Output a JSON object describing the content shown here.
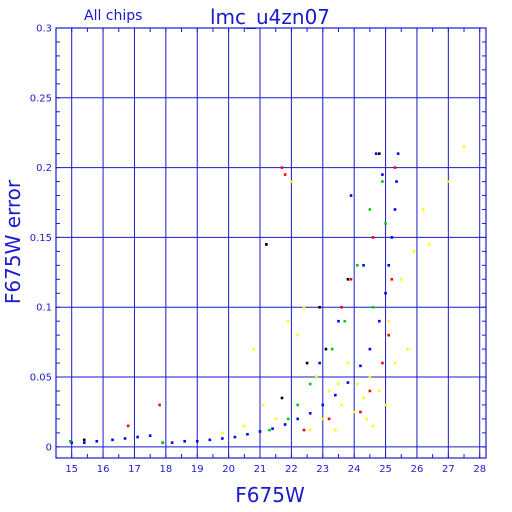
{
  "chart_data": {
    "type": "scatter",
    "title": "lmc_u4zn07",
    "subtitle": "All chips",
    "xlabel": "F675W",
    "ylabel": "F675W error",
    "xlim": [
      14.5,
      28.2
    ],
    "ylim": [
      -0.008,
      0.3
    ],
    "x_ticks": [
      "15",
      "16",
      "17",
      "18",
      "19",
      "20",
      "21",
      "22",
      "23",
      "24",
      "25",
      "26",
      "27",
      "28"
    ],
    "y_ticks": [
      "0",
      "0.05",
      "0.1",
      "0.15",
      "0.2",
      "0.25",
      "0.3"
    ],
    "grid": true,
    "series": [
      {
        "color": "#0000ff",
        "points": [
          [
            15,
            0.003
          ],
          [
            15.4,
            0.003
          ],
          [
            15.8,
            0.004
          ],
          [
            16.3,
            0.005
          ],
          [
            16.7,
            0.006
          ],
          [
            17.1,
            0.007
          ],
          [
            17.5,
            0.008
          ],
          [
            17.9,
            0.003
          ],
          [
            18.2,
            0.003
          ],
          [
            18.6,
            0.004
          ],
          [
            19.0,
            0.004
          ],
          [
            19.4,
            0.005
          ],
          [
            19.8,
            0.006
          ],
          [
            20.2,
            0.007
          ],
          [
            20.6,
            0.009
          ],
          [
            21.0,
            0.011
          ],
          [
            21.4,
            0.013
          ],
          [
            21.8,
            0.016
          ],
          [
            22.2,
            0.02
          ],
          [
            22.6,
            0.024
          ],
          [
            23.0,
            0.03
          ],
          [
            23.4,
            0.037
          ],
          [
            23.8,
            0.046
          ],
          [
            24.2,
            0.058
          ],
          [
            24.5,
            0.07
          ],
          [
            24.8,
            0.09
          ],
          [
            25.0,
            0.11
          ],
          [
            25.1,
            0.13
          ],
          [
            25.2,
            0.15
          ],
          [
            25.3,
            0.17
          ],
          [
            25.35,
            0.19
          ],
          [
            25.4,
            0.21
          ],
          [
            21.2,
            0.145
          ],
          [
            24.7,
            0.21
          ],
          [
            23.9,
            0.18
          ],
          [
            24.3,
            0.13
          ],
          [
            23.5,
            0.09
          ],
          [
            22.9,
            0.06
          ],
          [
            24.9,
            0.195
          ]
        ]
      },
      {
        "color": "#ff0000",
        "points": [
          [
            17.8,
            0.03
          ],
          [
            21.7,
            0.2
          ],
          [
            21.8,
            0.195
          ],
          [
            24.5,
            0.04
          ],
          [
            24.9,
            0.06
          ],
          [
            25.1,
            0.08
          ],
          [
            25.2,
            0.12
          ],
          [
            23.6,
            0.1
          ],
          [
            23.2,
            0.02
          ],
          [
            22.4,
            0.012
          ],
          [
            24.6,
            0.15
          ],
          [
            25.3,
            0.2
          ],
          [
            16.8,
            0.015
          ],
          [
            23.9,
            0.12
          ],
          [
            24.2,
            0.025
          ]
        ]
      },
      {
        "color": "#00cc00",
        "points": [
          [
            17.9,
            0.003
          ],
          [
            22.8,
            0.05
          ],
          [
            23.7,
            0.09
          ],
          [
            24.1,
            0.13
          ],
          [
            24.5,
            0.17
          ],
          [
            24.9,
            0.19
          ],
          [
            22.2,
            0.03
          ],
          [
            23.3,
            0.07
          ],
          [
            21.9,
            0.02
          ],
          [
            24.6,
            0.1
          ],
          [
            25.0,
            0.16
          ],
          [
            21.3,
            0.012
          ],
          [
            22.6,
            0.045
          ],
          [
            14.95,
            0.004
          ]
        ]
      },
      {
        "color": "#000000",
        "points": [
          [
            15.4,
            0.005
          ],
          [
            21.2,
            0.145
          ],
          [
            22.5,
            0.06
          ],
          [
            23.8,
            0.12
          ],
          [
            24.8,
            0.21
          ],
          [
            23.1,
            0.07
          ],
          [
            21.7,
            0.035
          ],
          [
            22.9,
            0.1
          ]
        ]
      },
      {
        "color": "#ffff00",
        "points": [
          [
            19.8,
            0.01
          ],
          [
            20.5,
            0.015
          ],
          [
            21.5,
            0.02
          ],
          [
            22.0,
            0.19
          ],
          [
            22.2,
            0.08
          ],
          [
            22.4,
            0.1
          ],
          [
            22.8,
            0.05
          ],
          [
            23.0,
            0.02
          ],
          [
            23.2,
            0.04
          ],
          [
            23.4,
            0.012
          ],
          [
            23.6,
            0.03
          ],
          [
            23.8,
            0.06
          ],
          [
            24.0,
            0.025
          ],
          [
            24.1,
            0.045
          ],
          [
            24.3,
            0.035
          ],
          [
            24.5,
            0.05
          ],
          [
            24.6,
            0.015
          ],
          [
            24.8,
            0.04
          ],
          [
            25.0,
            0.03
          ],
          [
            25.1,
            0.09
          ],
          [
            25.3,
            0.06
          ],
          [
            25.5,
            0.12
          ],
          [
            25.7,
            0.07
          ],
          [
            25.9,
            0.14
          ],
          [
            26.2,
            0.17
          ],
          [
            26.4,
            0.145
          ],
          [
            27.0,
            0.19
          ],
          [
            27.5,
            0.215
          ],
          [
            24.4,
            0.02
          ],
          [
            23.5,
            0.045
          ],
          [
            22.6,
            0.012
          ],
          [
            21.1,
            0.03
          ],
          [
            20.8,
            0.07
          ],
          [
            21.9,
            0.09
          ]
        ]
      }
    ]
  }
}
